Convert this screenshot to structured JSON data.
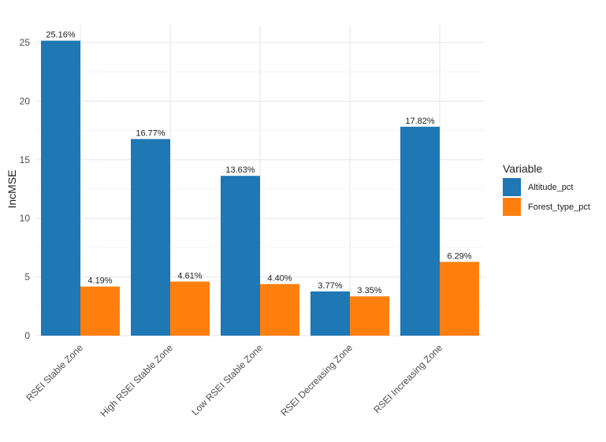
{
  "chart_data": {
    "type": "bar",
    "title": "",
    "xlabel": "",
    "ylabel": "IncMSE",
    "ylim": [
      0,
      26.5
    ],
    "yticks": [
      0,
      5,
      10,
      15,
      20,
      25
    ],
    "grid": true,
    "legend": {
      "title": "Variable",
      "position": "right"
    },
    "categories": [
      "RSEI Stable Zone",
      "High RSEI Stable Zone",
      "Low RSEI Stable Zone",
      "RSEI Decreasing Zone",
      "RSEI Increasing Zone"
    ],
    "series": [
      {
        "name": "Altitude_pct",
        "color": "#1f77b4",
        "values": [
          25.16,
          16.77,
          13.63,
          3.77,
          17.82
        ],
        "labels": [
          "25.16%",
          "16.77%",
          "13.63%",
          "3.77%",
          "17.82%"
        ]
      },
      {
        "name": "Forest_type_pct",
        "color": "#ff7f0e",
        "values": [
          4.19,
          4.61,
          4.4,
          3.35,
          6.29
        ],
        "labels": [
          "4.19%",
          "4.61%",
          "4.40%",
          "3.35%",
          "6.29%"
        ]
      }
    ]
  }
}
